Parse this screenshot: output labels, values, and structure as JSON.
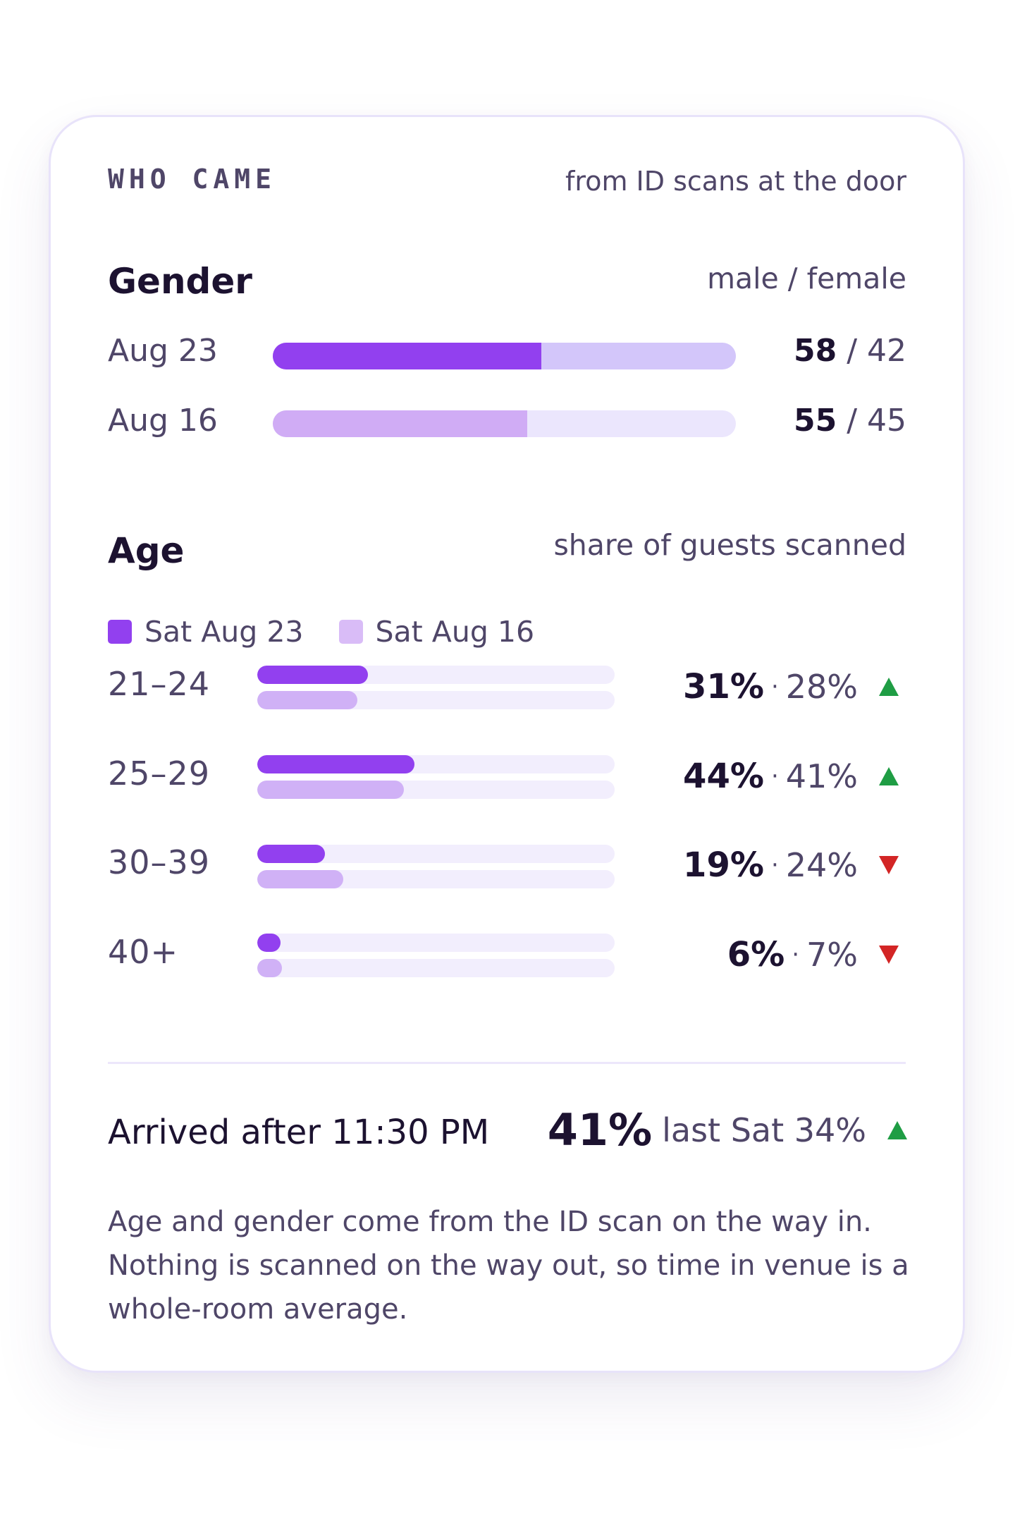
{
  "header": {
    "eyebrow": "WHO CAME",
    "source_note": "from ID scans at the door"
  },
  "gender": {
    "title": "Gender",
    "legend": "male / female",
    "rows": [
      {
        "label": "Aug 23",
        "male": 58,
        "female": 42,
        "male_text": "58",
        "sep": " / ",
        "female_text": "42"
      },
      {
        "label": "Aug 16",
        "male": 55,
        "female": 45,
        "male_text": "55",
        "sep": " / ",
        "female_text": "45"
      }
    ]
  },
  "age": {
    "title": "Age",
    "note": "share of guests scanned",
    "legend": [
      {
        "label": "Sat Aug 23",
        "color": "#9240ef"
      },
      {
        "label": "Sat Aug 16",
        "color": "#d9bcf7"
      }
    ],
    "rows": [
      {
        "label": "21–24",
        "current": 31,
        "previous": 28,
        "current_text": "31%",
        "sep": "·",
        "previous_text": "28%",
        "trend": "up"
      },
      {
        "label": "25–29",
        "current": 44,
        "previous": 41,
        "current_text": "44%",
        "sep": "·",
        "previous_text": "41%",
        "trend": "up"
      },
      {
        "label": "30–39",
        "current": 19,
        "previous": 24,
        "current_text": "19%",
        "sep": "·",
        "previous_text": "24%",
        "trend": "down"
      },
      {
        "label": "40+",
        "current": 6,
        "previous": 7,
        "current_text": "6%",
        "sep": "·",
        "previous_text": "7%",
        "trend": "down"
      }
    ]
  },
  "late_arrivals": {
    "label": "Arrived after 11:30 PM",
    "value": "41%",
    "comparison": "last Sat 34%",
    "trend": "up"
  },
  "footnote": "Age and gender come from the ID scan on the way in. Nothing is scanned on the way out, so time in venue is a whole-room average.",
  "colors": {
    "current": "#9240ef",
    "previous": "#d0b1f6",
    "male_prev": "#d0acf5",
    "up": "#1f9d44",
    "down": "#d32525"
  },
  "icons": {
    "up": "triangle-up-icon",
    "down": "triangle-down-icon"
  }
}
